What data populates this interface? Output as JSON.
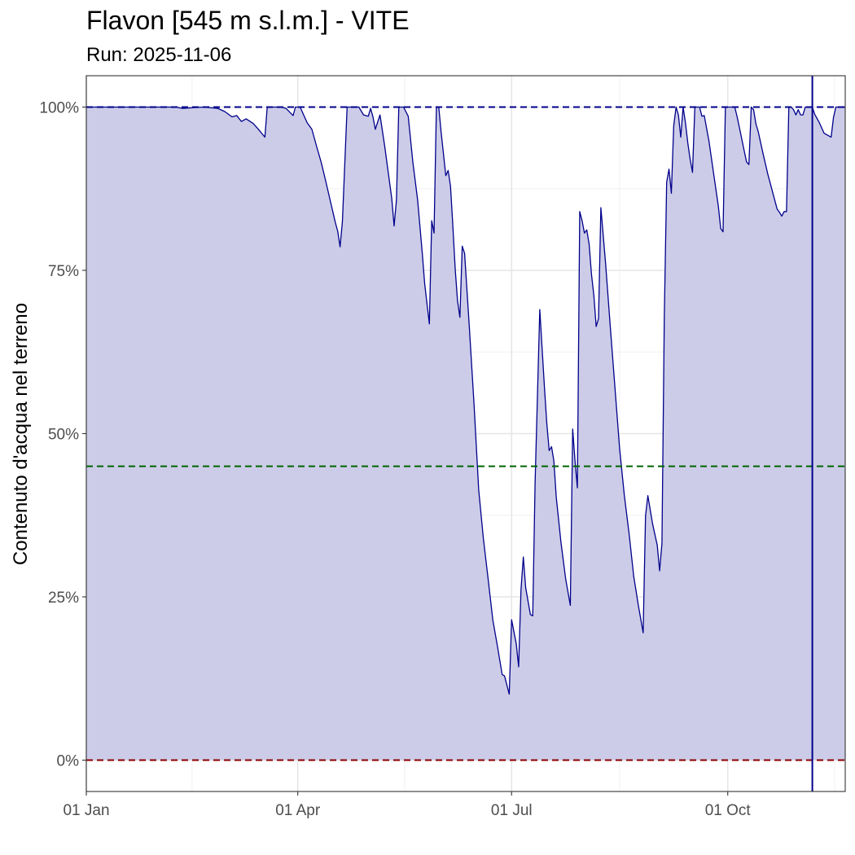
{
  "chart_data": {
    "type": "area",
    "title": "Flavon [545 m s.l.m.] - VITE",
    "subtitle": "Run: 2025-11-06",
    "xlabel": "",
    "ylabel": "Contenuto d'acqua nel terreno",
    "x_axis": {
      "type": "date",
      "range": [
        "2025-01-01",
        "2025-11-20"
      ],
      "ticks": [
        {
          "date": "2025-01-01",
          "label": "01 Jan"
        },
        {
          "date": "2025-04-01",
          "label": "01 Apr"
        },
        {
          "date": "2025-07-01",
          "label": "01 Jul"
        },
        {
          "date": "2025-10-01",
          "label": "01 Oct"
        }
      ]
    },
    "y_axis": {
      "unit": "%",
      "range": [
        -4.8,
        104.8
      ],
      "ticks": [
        {
          "value": 0,
          "label": "0%"
        },
        {
          "value": 25,
          "label": "25%"
        },
        {
          "value": 50,
          "label": "50%"
        },
        {
          "value": 75,
          "label": "75%"
        },
        {
          "value": 100,
          "label": "100%"
        }
      ]
    },
    "grid": true,
    "reference_lines": [
      {
        "value": 100,
        "color": "#00008b",
        "style": "dashed"
      },
      {
        "value": 45,
        "color": "#006400",
        "style": "dashed"
      },
      {
        "value": 0,
        "color": "#8b0000",
        "style": "dashed"
      }
    ],
    "run_marker": {
      "date": "2025-11-06",
      "color": "#00008b"
    },
    "series": [
      {
        "color": "#00008b",
        "fill": "#cccce8",
        "points": [
          [
            "2025-01-01",
            100
          ],
          [
            "2025-01-05",
            100
          ],
          [
            "2025-01-08",
            100
          ],
          [
            "2025-01-12",
            100
          ],
          [
            "2025-01-16",
            100
          ],
          [
            "2025-01-20",
            100
          ],
          [
            "2025-01-25",
            100
          ],
          [
            "2025-01-30",
            100
          ],
          [
            "2025-02-04",
            100
          ],
          [
            "2025-02-08",
            100
          ],
          [
            "2025-02-11",
            99.8
          ],
          [
            "2025-02-15",
            99.9
          ],
          [
            "2025-02-20",
            100
          ],
          [
            "2025-02-26",
            99.8
          ],
          [
            "2025-03-01",
            99.3
          ],
          [
            "2025-03-04",
            98.5
          ],
          [
            "2025-03-06",
            98.7
          ],
          [
            "2025-03-08",
            97.8
          ],
          [
            "2025-03-10",
            98.2
          ],
          [
            "2025-03-13",
            97.5
          ],
          [
            "2025-03-15",
            96.7
          ],
          [
            "2025-03-18",
            95.4
          ],
          [
            "2025-03-19",
            100
          ],
          [
            "2025-03-22",
            100
          ],
          [
            "2025-03-25",
            100
          ],
          [
            "2025-03-27",
            99.8
          ],
          [
            "2025-03-30",
            98.7
          ],
          [
            "2025-03-31",
            100
          ],
          [
            "2025-04-02",
            100
          ],
          [
            "2025-04-05",
            97.6
          ],
          [
            "2025-04-07",
            96.6
          ],
          [
            "2025-04-09",
            94.0
          ],
          [
            "2025-04-11",
            91.5
          ],
          [
            "2025-04-13",
            88.5
          ],
          [
            "2025-04-15",
            85.4
          ],
          [
            "2025-04-17",
            82.3
          ],
          [
            "2025-04-18",
            81.0
          ],
          [
            "2025-04-19",
            78.6
          ],
          [
            "2025-04-20",
            82.5
          ],
          [
            "2025-04-22",
            100
          ],
          [
            "2025-04-25",
            100
          ],
          [
            "2025-04-27",
            100
          ],
          [
            "2025-04-29",
            98.8
          ],
          [
            "2025-05-01",
            98.6
          ],
          [
            "2025-05-02",
            99.8
          ],
          [
            "2025-05-03",
            98.5
          ],
          [
            "2025-05-04",
            96.6
          ],
          [
            "2025-05-06",
            98.8
          ],
          [
            "2025-05-08",
            94.0
          ],
          [
            "2025-05-11",
            86.0
          ],
          [
            "2025-05-12",
            81.8
          ],
          [
            "2025-05-13",
            85.8
          ],
          [
            "2025-05-14",
            100
          ],
          [
            "2025-05-16",
            100
          ],
          [
            "2025-05-18",
            98.6
          ],
          [
            "2025-05-20",
            91.5
          ],
          [
            "2025-05-22",
            85.8
          ],
          [
            "2025-05-24",
            77.6
          ],
          [
            "2025-05-25",
            73.0
          ],
          [
            "2025-05-27",
            66.8
          ],
          [
            "2025-05-28",
            82.6
          ],
          [
            "2025-05-29",
            80.7
          ],
          [
            "2025-05-30",
            100
          ],
          [
            "2025-05-31",
            100
          ],
          [
            "2025-06-01",
            96.2
          ],
          [
            "2025-06-03",
            89.5
          ],
          [
            "2025-06-04",
            90.3
          ],
          [
            "2025-06-05",
            87.9
          ],
          [
            "2025-06-06",
            81.8
          ],
          [
            "2025-06-07",
            75.2
          ],
          [
            "2025-06-08",
            70.3
          ],
          [
            "2025-06-09",
            67.8
          ],
          [
            "2025-06-10",
            78.7
          ],
          [
            "2025-06-11",
            77.6
          ],
          [
            "2025-06-13",
            66.4
          ],
          [
            "2025-06-15",
            54.6
          ],
          [
            "2025-06-17",
            41.4
          ],
          [
            "2025-06-19",
            33.9
          ],
          [
            "2025-06-21",
            27.8
          ],
          [
            "2025-06-23",
            21.5
          ],
          [
            "2025-06-25",
            17.4
          ],
          [
            "2025-06-27",
            13.1
          ],
          [
            "2025-06-28",
            12.9
          ],
          [
            "2025-06-30",
            10.1
          ],
          [
            "2025-07-01",
            21.5
          ],
          [
            "2025-07-03",
            17.8
          ],
          [
            "2025-07-04",
            14.3
          ],
          [
            "2025-07-05",
            26.1
          ],
          [
            "2025-07-06",
            31.1
          ],
          [
            "2025-07-07",
            26.4
          ],
          [
            "2025-07-09",
            22.3
          ],
          [
            "2025-07-10",
            22.1
          ],
          [
            "2025-07-11",
            42.4
          ],
          [
            "2025-07-13",
            69.0
          ],
          [
            "2025-07-15",
            57.0
          ],
          [
            "2025-07-16",
            51.5
          ],
          [
            "2025-07-17",
            47.4
          ],
          [
            "2025-07-18",
            48.0
          ],
          [
            "2025-07-19",
            45.8
          ],
          [
            "2025-07-20",
            40.3
          ],
          [
            "2025-07-22",
            33.4
          ],
          [
            "2025-07-24",
            27.8
          ],
          [
            "2025-07-26",
            23.7
          ],
          [
            "2025-07-27",
            50.7
          ],
          [
            "2025-07-28",
            45.8
          ],
          [
            "2025-07-29",
            41.7
          ],
          [
            "2025-07-30",
            84.0
          ],
          [
            "2025-07-31",
            82.6
          ],
          [
            "2025-08-01",
            80.7
          ],
          [
            "2025-08-02",
            81.2
          ],
          [
            "2025-08-03",
            79.0
          ],
          [
            "2025-08-04",
            74.4
          ],
          [
            "2025-08-05",
            71.2
          ],
          [
            "2025-08-06",
            66.4
          ],
          [
            "2025-08-07",
            67.6
          ],
          [
            "2025-08-08",
            84.6
          ],
          [
            "2025-08-10",
            76.1
          ],
          [
            "2025-08-12",
            66.4
          ],
          [
            "2025-08-14",
            57.0
          ],
          [
            "2025-08-16",
            47.6
          ],
          [
            "2025-08-18",
            40.5
          ],
          [
            "2025-08-20",
            34.7
          ],
          [
            "2025-08-22",
            28.1
          ],
          [
            "2025-08-24",
            23.6
          ],
          [
            "2025-08-26",
            19.5
          ],
          [
            "2025-08-27",
            37.4
          ],
          [
            "2025-08-28",
            40.5
          ],
          [
            "2025-08-30",
            36.2
          ],
          [
            "2025-09-01",
            32.9
          ],
          [
            "2025-09-02",
            29.0
          ],
          [
            "2025-09-03",
            33.2
          ],
          [
            "2025-09-04",
            68.0
          ],
          [
            "2025-09-05",
            88.5
          ],
          [
            "2025-09-06",
            90.5
          ],
          [
            "2025-09-07",
            86.8
          ],
          [
            "2025-09-08",
            97.1
          ],
          [
            "2025-09-09",
            100
          ],
          [
            "2025-09-10",
            98.8
          ],
          [
            "2025-09-11",
            95.4
          ],
          [
            "2025-09-12",
            100
          ],
          [
            "2025-09-13",
            97.6
          ],
          [
            "2025-09-14",
            94.5
          ],
          [
            "2025-09-15",
            92.0
          ],
          [
            "2025-09-16",
            90.0
          ],
          [
            "2025-09-17",
            100
          ],
          [
            "2025-09-19",
            100
          ],
          [
            "2025-09-20",
            98.6
          ],
          [
            "2025-09-21",
            98.7
          ],
          [
            "2025-09-23",
            94.8
          ],
          [
            "2025-09-25",
            89.8
          ],
          [
            "2025-09-27",
            84.8
          ],
          [
            "2025-09-28",
            81.4
          ],
          [
            "2025-09-29",
            80.9
          ],
          [
            "2025-09-30",
            100
          ],
          [
            "2025-10-02",
            100
          ],
          [
            "2025-10-04",
            100
          ],
          [
            "2025-10-05",
            98.5
          ],
          [
            "2025-10-06",
            96.8
          ],
          [
            "2025-10-08",
            93.3
          ],
          [
            "2025-10-09",
            91.6
          ],
          [
            "2025-10-10",
            91.2
          ],
          [
            "2025-10-11",
            100
          ],
          [
            "2025-10-12",
            99.6
          ],
          [
            "2025-10-13",
            97.4
          ],
          [
            "2025-10-14",
            96.2
          ],
          [
            "2025-10-16",
            92.9
          ],
          [
            "2025-10-18",
            89.8
          ],
          [
            "2025-10-20",
            87.1
          ],
          [
            "2025-10-22",
            84.4
          ],
          [
            "2025-10-23",
            83.9
          ],
          [
            "2025-10-24",
            83.3
          ],
          [
            "2025-10-25",
            84.0
          ],
          [
            "2025-10-26",
            84.0
          ],
          [
            "2025-10-27",
            100
          ],
          [
            "2025-10-28",
            100
          ],
          [
            "2025-10-29",
            99.6
          ],
          [
            "2025-10-30",
            98.8
          ],
          [
            "2025-10-31",
            99.6
          ],
          [
            "2025-11-01",
            98.8
          ],
          [
            "2025-11-02",
            98.8
          ],
          [
            "2025-11-03",
            100
          ],
          [
            "2025-11-04",
            100
          ],
          [
            "2025-11-06",
            100
          ],
          [
            "2025-11-07",
            98.9
          ],
          [
            "2025-11-09",
            97.6
          ],
          [
            "2025-11-11",
            96.0
          ],
          [
            "2025-11-13",
            95.6
          ],
          [
            "2025-11-14",
            95.4
          ],
          [
            "2025-11-15",
            98.4
          ],
          [
            "2025-11-16",
            100
          ],
          [
            "2025-11-18",
            100
          ],
          [
            "2025-11-20",
            100
          ]
        ]
      }
    ]
  }
}
